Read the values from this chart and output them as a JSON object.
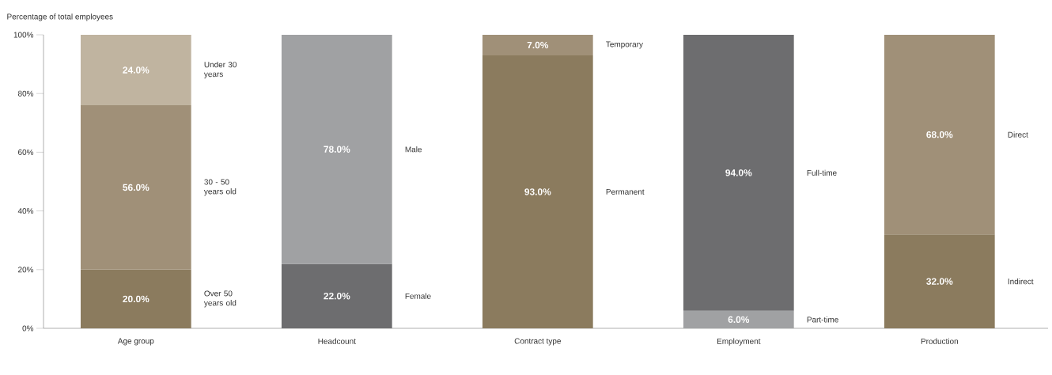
{
  "chart_data": {
    "type": "bar",
    "stacked": true,
    "ylabel": "Percentage of total employees",
    "categories": [
      "Age group",
      "Headcount",
      "Contract type",
      "Employment",
      "Production"
    ],
    "ylim": [
      0,
      100
    ],
    "yticks": [
      {
        "value": 0,
        "label": "0%"
      },
      {
        "value": 20,
        "label": "20%"
      },
      {
        "value": 40,
        "label": "40%"
      },
      {
        "value": 60,
        "label": "60%"
      },
      {
        "value": 80,
        "label": "80%"
      },
      {
        "value": 100,
        "label": "100%"
      }
    ],
    "series": [
      {
        "name": "Over 50 years old",
        "color": "#8b7b5e",
        "values": [
          20,
          null,
          null,
          null,
          null
        ],
        "value_labels": [
          "20.0%",
          null,
          null,
          null,
          null
        ]
      },
      {
        "name": "30 - 50 years old",
        "color": "#a09078",
        "values": [
          56,
          null,
          null,
          null,
          null
        ],
        "value_labels": [
          "56.0%",
          null,
          null,
          null,
          null
        ]
      },
      {
        "name": "Under 30 years",
        "color": "#c0b4a0",
        "values": [
          24,
          null,
          null,
          null,
          null
        ],
        "value_labels": [
          "24.0%",
          null,
          null,
          null,
          null
        ]
      },
      {
        "name": "Female",
        "color": "#6d6d6f",
        "values": [
          null,
          22,
          null,
          null,
          null
        ],
        "value_labels": [
          null,
          "22.0%",
          null,
          null,
          null
        ]
      },
      {
        "name": "Male",
        "color": "#a0a1a3",
        "values": [
          null,
          78,
          null,
          null,
          null
        ],
        "value_labels": [
          null,
          "78.0%",
          null,
          null,
          null
        ]
      },
      {
        "name": "Permanent",
        "color": "#8b7b5e",
        "values": [
          null,
          null,
          93,
          null,
          null
        ],
        "value_labels": [
          null,
          null,
          "93.0%",
          null,
          null
        ]
      },
      {
        "name": "Temporary",
        "color": "#a09078",
        "values": [
          null,
          null,
          7,
          null,
          null
        ],
        "value_labels": [
          null,
          null,
          "7.0%",
          null,
          null
        ]
      },
      {
        "name": "Part-time",
        "color": "#a0a1a3",
        "values": [
          null,
          null,
          null,
          6,
          null
        ],
        "value_labels": [
          null,
          null,
          null,
          "6.0%",
          null
        ]
      },
      {
        "name": "Full-time",
        "color": "#6d6d6f",
        "values": [
          null,
          null,
          null,
          94,
          null
        ],
        "value_labels": [
          null,
          null,
          null,
          "94.0%",
          null
        ]
      },
      {
        "name": "Indirect",
        "color": "#8b7b5e",
        "values": [
          null,
          null,
          null,
          null,
          32
        ],
        "value_labels": [
          null,
          null,
          null,
          null,
          "32.0%"
        ]
      },
      {
        "name": "Direct",
        "color": "#a09078",
        "values": [
          null,
          null,
          null,
          null,
          68
        ],
        "value_labels": [
          null,
          null,
          null,
          null,
          "68.0%"
        ]
      }
    ]
  }
}
